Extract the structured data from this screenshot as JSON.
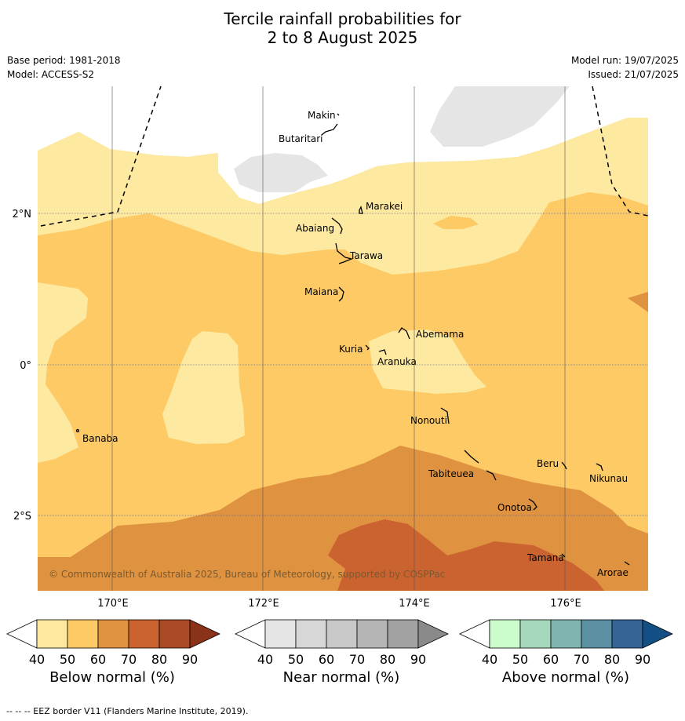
{
  "title": {
    "line1": "Tercile rainfall probabilities for",
    "line2": "2 to 8 August 2025"
  },
  "meta": {
    "base_period": "Base period: 1981-2018",
    "model": "Model: ACCESS-S2",
    "model_run": "Model run: 19/07/2025",
    "issued": "Issued: 21/07/2025"
  },
  "map": {
    "copyright": "© Commonwealth of Australia 2025, Bureau of Meteorology, supported by COSPPac",
    "lat_labels": [
      "2°N",
      "0°",
      "2°S"
    ],
    "lon_labels": [
      "170°E",
      "172°E",
      "174°E",
      "176°E"
    ],
    "places": [
      "Makin",
      "Butaritari",
      "Marakei",
      "Abaiang",
      "Tarawa",
      "Maiana",
      "Abemama",
      "Kuria",
      "Aranuka",
      "Banaba",
      "Nonouti",
      "Beru",
      "Tabiteuea",
      "Nikunau",
      "Onotoa",
      "Tamana",
      "Arorae"
    ]
  },
  "colorbars": [
    {
      "label": "Below normal (%)",
      "ticks": [
        "40",
        "50",
        "60",
        "70",
        "80",
        "90"
      ],
      "colors": [
        "#ffffff",
        "#fee9a0",
        "#fdca66",
        "#df9240",
        "#cb6330",
        "#aa4a26",
        "#8b3318"
      ]
    },
    {
      "label": "Near normal (%)",
      "ticks": [
        "40",
        "50",
        "60",
        "70",
        "80",
        "90"
      ],
      "colors": [
        "#ffffff",
        "#e5e5e5",
        "#d7d7d7",
        "#c8c8c8",
        "#b5b5b5",
        "#a2a2a2",
        "#8a8a8a"
      ]
    },
    {
      "label": "Above normal (%)",
      "ticks": [
        "40",
        "50",
        "60",
        "70",
        "80",
        "90"
      ],
      "colors": [
        "#ffffff",
        "#ccfccc",
        "#a6d8bc",
        "#80b4b0",
        "#5b90a2",
        "#356595",
        "#134f85"
      ]
    }
  ],
  "footnote": "--  --  -- EEZ border V11 (Flanders Marine Institute, 2019)."
}
